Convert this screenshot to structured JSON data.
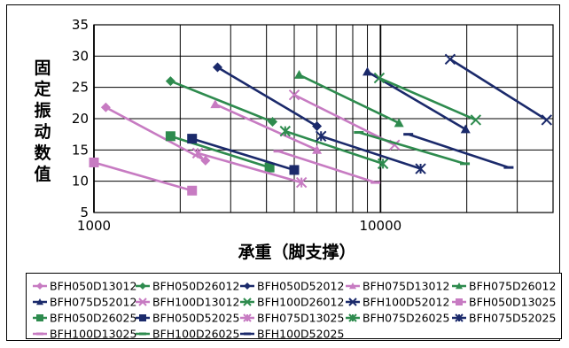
{
  "chart_data": {
    "type": "line",
    "xscale": "log",
    "xlim": [
      1000,
      40000
    ],
    "ylim": [
      5,
      35
    ],
    "xticks": [
      1000,
      10000
    ],
    "xtick_labels": [
      "1000",
      "10000"
    ],
    "yticks": [
      5,
      10,
      15,
      20,
      25,
      30,
      35
    ],
    "ytick_labels": [
      "5",
      "10",
      "15",
      "20",
      "25",
      "30",
      "35"
    ],
    "xlabel": "承重（脚支撑）",
    "ylabel": "固定振动数值",
    "grid": true,
    "legend_position": "bottom",
    "series": [
      {
        "name": "BFH050D13012",
        "color": "#c77bc2",
        "marker": "diamond",
        "points": [
          [
            1100,
            21.8
          ],
          [
            2450,
            13.3
          ]
        ]
      },
      {
        "name": "BFH050D26012",
        "color": "#2e8b4e",
        "marker": "diamond",
        "points": [
          [
            1850,
            26.0
          ],
          [
            4200,
            19.5
          ]
        ]
      },
      {
        "name": "BFH050D52012",
        "color": "#1b2a6b",
        "marker": "diamond",
        "points": [
          [
            2700,
            28.2
          ],
          [
            6000,
            18.8
          ]
        ]
      },
      {
        "name": "BFH075D13012",
        "color": "#c77bc2",
        "marker": "triangle",
        "points": [
          [
            2650,
            22.3
          ],
          [
            6000,
            15.0
          ]
        ]
      },
      {
        "name": "BFH075D26012",
        "color": "#2e8b4e",
        "marker": "triangle",
        "points": [
          [
            5200,
            27.0
          ],
          [
            11600,
            19.3
          ]
        ]
      },
      {
        "name": "BFH075D52012",
        "color": "#1b2a6b",
        "marker": "triangle",
        "points": [
          [
            9000,
            27.5
          ],
          [
            19800,
            18.3
          ]
        ]
      },
      {
        "name": "BFH100D13012",
        "color": "#c77bc2",
        "marker": "cross",
        "points": [
          [
            5000,
            23.8
          ],
          [
            11200,
            15.8
          ]
        ]
      },
      {
        "name": "BFH100D26012",
        "color": "#2e8b4e",
        "marker": "cross",
        "points": [
          [
            9900,
            26.5
          ],
          [
            21500,
            19.8
          ]
        ]
      },
      {
        "name": "BFH100D52012",
        "color": "#1b2a6b",
        "marker": "cross",
        "points": [
          [
            17500,
            29.5
          ],
          [
            38000,
            19.8
          ]
        ]
      },
      {
        "name": "BFH050D13025",
        "color": "#c77bc2",
        "marker": "square",
        "points": [
          [
            1000,
            13.0
          ],
          [
            2200,
            8.5
          ]
        ]
      },
      {
        "name": "BFH050D26025",
        "color": "#2e8b4e",
        "marker": "square",
        "points": [
          [
            1850,
            17.2
          ],
          [
            4100,
            12.2
          ]
        ]
      },
      {
        "name": "BFH050D52025",
        "color": "#1b2a6b",
        "marker": "square",
        "points": [
          [
            2200,
            16.8
          ],
          [
            5000,
            11.8
          ]
        ]
      },
      {
        "name": "BFH075D13025",
        "color": "#c77bc2",
        "marker": "star",
        "points": [
          [
            2300,
            14.5
          ],
          [
            5300,
            9.8
          ]
        ]
      },
      {
        "name": "BFH075D26025",
        "color": "#2e8b4e",
        "marker": "star",
        "points": [
          [
            4650,
            18.0
          ],
          [
            10200,
            12.8
          ]
        ]
      },
      {
        "name": "BFH075D52025",
        "color": "#1b2a6b",
        "marker": "star",
        "points": [
          [
            6200,
            17.2
          ],
          [
            13800,
            12.0
          ]
        ]
      },
      {
        "name": "BFH100D13025",
        "color": "#c77bc2",
        "marker": "dash",
        "points": [
          [
            4400,
            14.8
          ],
          [
            9600,
            9.8
          ]
        ]
      },
      {
        "name": "BFH100D26025",
        "color": "#2e8b4e",
        "marker": "dash",
        "points": [
          [
            8400,
            17.8
          ],
          [
            19700,
            12.8
          ]
        ]
      },
      {
        "name": "BFH100D52025",
        "color": "#1b2a6b",
        "marker": "dash",
        "points": [
          [
            12500,
            17.5
          ],
          [
            28000,
            12.2
          ]
        ]
      }
    ]
  }
}
